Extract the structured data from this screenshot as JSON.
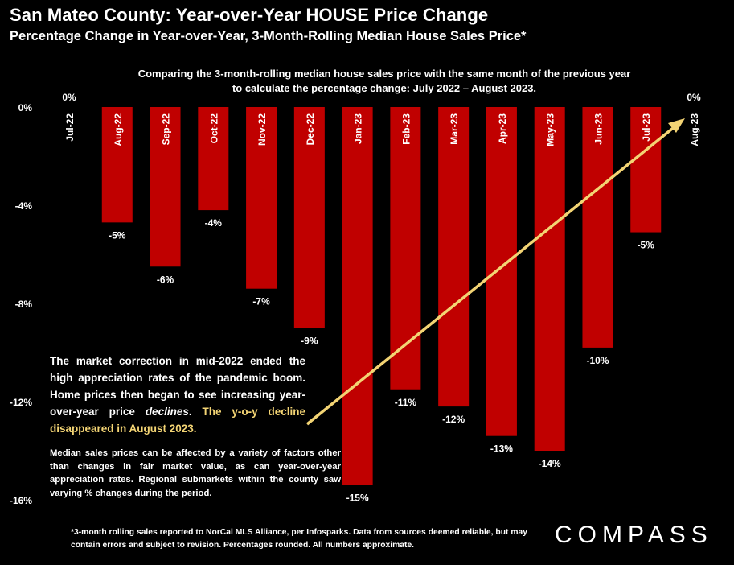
{
  "header": {
    "title": "San Mateo County: Year-over-Year HOUSE Price Change",
    "subtitle": "Percentage Change in Year-over-Year, 3-Month-Rolling Median House Sales Price*"
  },
  "intro": "Comparing the 3-month-rolling median house sales price with the same month of the previous year to calculate the percentage change: July 2022 – August 2023.",
  "callout": {
    "text": "The market correction in mid-2022 ended the high appreciation rates of the pandemic boom.  Home prices then began to see increasing year-over-year price ",
    "emph": "declines",
    "period": ". ",
    "highlight": "The y-o-y decline disappeared in August 2023."
  },
  "note": "Median sales prices can be affected by a variety of factors other than changes in fair market value, as can year-over-year appreciation rates. Regional submarkets within the county saw varying % changes during the period.",
  "footnote": "*3-month rolling sales reported to NorCal MLS Alliance, per Infosparks. Data from sources deemed reliable, but may contain errors and subject to revision. Percentages rounded. All numbers approximate.",
  "logo": "COMPASS",
  "chart_data": {
    "type": "bar",
    "categories": [
      "Jul-22",
      "Aug-22",
      "Sep-22",
      "Oct-22",
      "Nov-22",
      "Dec-22",
      "Jan-23",
      "Feb-23",
      "Mar-23",
      "Apr-23",
      "May-23",
      "Jun-23",
      "Jul-23",
      "Aug-23"
    ],
    "values": [
      0,
      -4.7,
      -6.5,
      -4.2,
      -7.4,
      -9.0,
      -15.4,
      -11.5,
      -12.2,
      -13.4,
      -14.0,
      -9.8,
      -5.1,
      0
    ],
    "data_labels": [
      "0%",
      "-5%",
      "-6%",
      "-4%",
      "-7%",
      "-9%",
      "-15%",
      "-11%",
      "-12%",
      "-13%",
      "-14%",
      "-10%",
      "-5%",
      "0%"
    ],
    "yticks": [
      "0%",
      "-4%",
      "-8%",
      "-12%",
      "-16%"
    ],
    "ytick_values": [
      0,
      -4,
      -8,
      -12,
      -16
    ],
    "ylim": [
      -16,
      0
    ],
    "bar_color": "#C00000",
    "arrow_color": "#F3D474",
    "grid": false
  }
}
